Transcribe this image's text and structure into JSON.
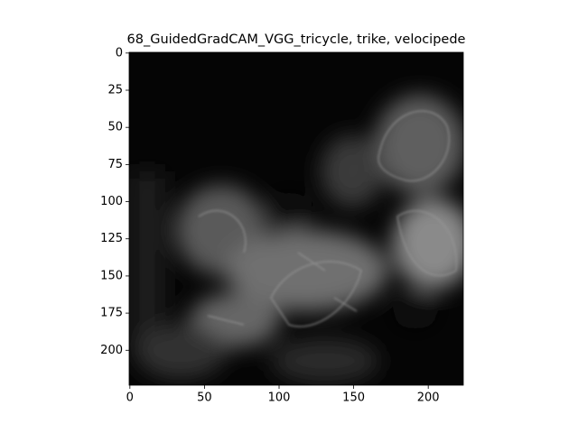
{
  "chart_data": {
    "type": "image",
    "title": "68_GuidedGradCAM_VGG_tricycle, trike, velocipede",
    "xlim": [
      -0.5,
      223.5
    ],
    "ylim": [
      223.5,
      -0.5
    ],
    "xticks": [
      0,
      50,
      100,
      150,
      200
    ],
    "yticks": [
      0,
      25,
      50,
      75,
      100,
      125,
      150,
      175,
      200
    ]
  }
}
